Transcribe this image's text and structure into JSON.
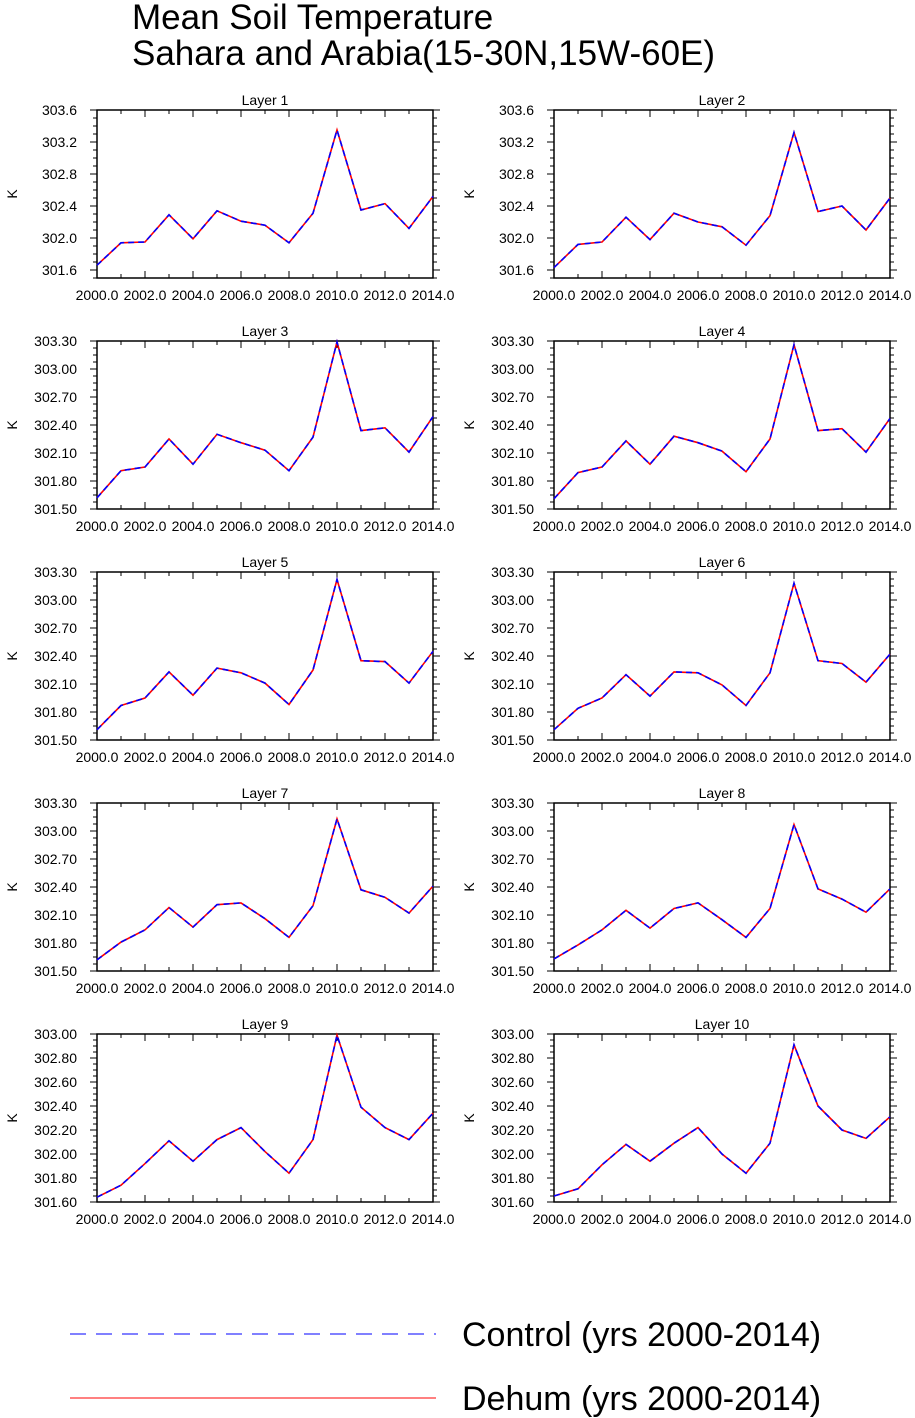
{
  "title": {
    "line1": "Mean Soil Temperature",
    "line2": "Sahara and Arabia(15-30N,15W-60E)"
  },
  "colors": {
    "control": "#0000ff",
    "dehum": "#ff0000"
  },
  "legend": [
    {
      "key": "control",
      "label": "Control (yrs 2000-2014)",
      "style": "dashed"
    },
    {
      "key": "dehum",
      "label": "Dehum (yrs 2000-2014)",
      "style": "solid"
    }
  ],
  "chart_data": [
    {
      "type": "line",
      "title": "Layer 1",
      "ylabel": "K",
      "xlim": [
        2000,
        2014
      ],
      "ylim": [
        301.5,
        303.6
      ],
      "xticks": [
        "2000.0",
        "2002.0",
        "2004.0",
        "2006.0",
        "2008.0",
        "2010.0",
        "2012.0",
        "2014.0"
      ],
      "yticks": [
        "301.6",
        "302.0",
        "302.4",
        "302.8",
        "303.2",
        "303.6"
      ],
      "x": [
        2000,
        2001,
        2002,
        2003,
        2004,
        2005,
        2006,
        2007,
        2008,
        2009,
        2010,
        2011,
        2012,
        2013,
        2014
      ],
      "series": [
        {
          "name": "Control (yrs 2000-2014)",
          "values": [
            301.66,
            301.94,
            301.95,
            302.29,
            301.99,
            302.34,
            302.21,
            302.16,
            301.94,
            302.31,
            303.35,
            302.35,
            302.43,
            302.12,
            302.52
          ]
        },
        {
          "name": "Dehum (yrs 2000-2014)",
          "values": [
            301.66,
            301.94,
            301.95,
            302.29,
            301.99,
            302.34,
            302.21,
            302.16,
            301.94,
            302.31,
            303.35,
            302.35,
            302.43,
            302.12,
            302.52
          ]
        }
      ]
    },
    {
      "type": "line",
      "title": "Layer 2",
      "ylabel": "K",
      "xlim": [
        2000,
        2014
      ],
      "ylim": [
        301.5,
        303.6
      ],
      "xticks": [
        "2000.0",
        "2002.0",
        "2004.0",
        "2006.0",
        "2008.0",
        "2010.0",
        "2012.0",
        "2014.0"
      ],
      "yticks": [
        "301.6",
        "302.0",
        "302.4",
        "302.8",
        "303.2",
        "303.6"
      ],
      "x": [
        2000,
        2001,
        2002,
        2003,
        2004,
        2005,
        2006,
        2007,
        2008,
        2009,
        2010,
        2011,
        2012,
        2013,
        2014
      ],
      "series": [
        {
          "name": "Control (yrs 2000-2014)",
          "values": [
            301.63,
            301.92,
            301.95,
            302.26,
            301.98,
            302.31,
            302.2,
            302.14,
            301.91,
            302.28,
            303.32,
            302.33,
            302.4,
            302.1,
            302.5
          ]
        },
        {
          "name": "Dehum (yrs 2000-2014)",
          "values": [
            301.63,
            301.92,
            301.95,
            302.26,
            301.98,
            302.31,
            302.2,
            302.14,
            301.91,
            302.28,
            303.32,
            302.33,
            302.4,
            302.1,
            302.5
          ]
        }
      ]
    },
    {
      "type": "line",
      "title": "Layer 3",
      "ylabel": "K",
      "xlim": [
        2000,
        2014
      ],
      "ylim": [
        301.5,
        303.3
      ],
      "xticks": [
        "2000.0",
        "2002.0",
        "2004.0",
        "2006.0",
        "2008.0",
        "2010.0",
        "2012.0",
        "2014.0"
      ],
      "yticks": [
        "301.50",
        "301.80",
        "302.10",
        "302.40",
        "302.70",
        "303.00",
        "303.30"
      ],
      "x": [
        2000,
        2001,
        2002,
        2003,
        2004,
        2005,
        2006,
        2007,
        2008,
        2009,
        2010,
        2011,
        2012,
        2013,
        2014
      ],
      "series": [
        {
          "name": "Control (yrs 2000-2014)",
          "values": [
            301.62,
            301.91,
            301.95,
            302.25,
            301.98,
            302.3,
            302.21,
            302.13,
            301.91,
            302.27,
            303.29,
            302.34,
            302.37,
            302.11,
            302.49
          ]
        },
        {
          "name": "Dehum (yrs 2000-2014)",
          "values": [
            301.62,
            301.91,
            301.95,
            302.25,
            301.98,
            302.3,
            302.21,
            302.13,
            301.91,
            302.27,
            303.29,
            302.34,
            302.37,
            302.11,
            302.49
          ]
        }
      ]
    },
    {
      "type": "line",
      "title": "Layer 4",
      "ylabel": "K",
      "xlim": [
        2000,
        2014
      ],
      "ylim": [
        301.5,
        303.3
      ],
      "xticks": [
        "2000.0",
        "2002.0",
        "2004.0",
        "2006.0",
        "2008.0",
        "2010.0",
        "2012.0",
        "2014.0"
      ],
      "yticks": [
        "301.50",
        "301.80",
        "302.10",
        "302.40",
        "302.70",
        "303.00",
        "303.30"
      ],
      "x": [
        2000,
        2001,
        2002,
        2003,
        2004,
        2005,
        2006,
        2007,
        2008,
        2009,
        2010,
        2011,
        2012,
        2013,
        2014
      ],
      "series": [
        {
          "name": "Control (yrs 2000-2014)",
          "values": [
            301.61,
            301.89,
            301.95,
            302.23,
            301.98,
            302.28,
            302.21,
            302.12,
            301.9,
            302.25,
            303.26,
            302.34,
            302.36,
            302.11,
            302.47
          ]
        },
        {
          "name": "Dehum (yrs 2000-2014)",
          "values": [
            301.61,
            301.89,
            301.95,
            302.23,
            301.98,
            302.28,
            302.21,
            302.12,
            301.9,
            302.25,
            303.26,
            302.34,
            302.36,
            302.11,
            302.47
          ]
        }
      ]
    },
    {
      "type": "line",
      "title": "Layer 5",
      "ylabel": "K",
      "xlim": [
        2000,
        2014
      ],
      "ylim": [
        301.5,
        303.3
      ],
      "xticks": [
        "2000.0",
        "2002.0",
        "2004.0",
        "2006.0",
        "2008.0",
        "2010.0",
        "2012.0",
        "2014.0"
      ],
      "yticks": [
        "301.50",
        "301.80",
        "302.10",
        "302.40",
        "302.70",
        "303.00",
        "303.30"
      ],
      "x": [
        2000,
        2001,
        2002,
        2003,
        2004,
        2005,
        2006,
        2007,
        2008,
        2009,
        2010,
        2011,
        2012,
        2013,
        2014
      ],
      "series": [
        {
          "name": "Control (yrs 2000-2014)",
          "values": [
            301.61,
            301.87,
            301.95,
            302.23,
            301.98,
            302.27,
            302.22,
            302.11,
            301.88,
            302.25,
            303.22,
            302.35,
            302.34,
            302.11,
            302.45
          ]
        },
        {
          "name": "Dehum (yrs 2000-2014)",
          "values": [
            301.61,
            301.87,
            301.95,
            302.23,
            301.98,
            302.27,
            302.22,
            302.11,
            301.88,
            302.25,
            303.22,
            302.35,
            302.34,
            302.11,
            302.45
          ]
        }
      ]
    },
    {
      "type": "line",
      "title": "Layer 6",
      "ylabel": "K",
      "xlim": [
        2000,
        2014
      ],
      "ylim": [
        301.5,
        303.3
      ],
      "xticks": [
        "2000.0",
        "2002.0",
        "2004.0",
        "2006.0",
        "2008.0",
        "2010.0",
        "2012.0",
        "2014.0"
      ],
      "yticks": [
        "301.50",
        "301.80",
        "302.10",
        "302.40",
        "302.70",
        "303.00",
        "303.30"
      ],
      "x": [
        2000,
        2001,
        2002,
        2003,
        2004,
        2005,
        2006,
        2007,
        2008,
        2009,
        2010,
        2011,
        2012,
        2013,
        2014
      ],
      "series": [
        {
          "name": "Control (yrs 2000-2014)",
          "values": [
            301.61,
            301.84,
            301.95,
            302.2,
            301.97,
            302.23,
            302.22,
            302.09,
            301.87,
            302.22,
            303.18,
            302.35,
            302.32,
            302.12,
            302.42
          ]
        },
        {
          "name": "Dehum (yrs 2000-2014)",
          "values": [
            301.61,
            301.84,
            301.95,
            302.2,
            301.97,
            302.23,
            302.22,
            302.09,
            301.87,
            302.22,
            303.18,
            302.35,
            302.32,
            302.12,
            302.42
          ]
        }
      ]
    },
    {
      "type": "line",
      "title": "Layer 7",
      "ylabel": "K",
      "xlim": [
        2000,
        2014
      ],
      "ylim": [
        301.5,
        303.3
      ],
      "xticks": [
        "2000.0",
        "2002.0",
        "2004.0",
        "2006.0",
        "2008.0",
        "2010.0",
        "2012.0",
        "2014.0"
      ],
      "yticks": [
        "301.50",
        "301.80",
        "302.10",
        "302.40",
        "302.70",
        "303.00",
        "303.30"
      ],
      "x": [
        2000,
        2001,
        2002,
        2003,
        2004,
        2005,
        2006,
        2007,
        2008,
        2009,
        2010,
        2011,
        2012,
        2013,
        2014
      ],
      "series": [
        {
          "name": "Control (yrs 2000-2014)",
          "values": [
            301.62,
            301.81,
            301.94,
            302.18,
            301.97,
            302.21,
            302.23,
            302.06,
            301.86,
            302.2,
            303.13,
            302.37,
            302.29,
            302.12,
            302.41
          ]
        },
        {
          "name": "Dehum (yrs 2000-2014)",
          "values": [
            301.62,
            301.81,
            301.94,
            302.18,
            301.97,
            302.21,
            302.23,
            302.06,
            301.86,
            302.2,
            303.13,
            302.37,
            302.29,
            302.12,
            302.41
          ]
        }
      ]
    },
    {
      "type": "line",
      "title": "Layer 8",
      "ylabel": "K",
      "xlim": [
        2000,
        2014
      ],
      "ylim": [
        301.5,
        303.3
      ],
      "xticks": [
        "2000.0",
        "2002.0",
        "2004.0",
        "2006.0",
        "2008.0",
        "2010.0",
        "2012.0",
        "2014.0"
      ],
      "yticks": [
        "301.50",
        "301.80",
        "302.10",
        "302.40",
        "302.70",
        "303.00",
        "303.30"
      ],
      "x": [
        2000,
        2001,
        2002,
        2003,
        2004,
        2005,
        2006,
        2007,
        2008,
        2009,
        2010,
        2011,
        2012,
        2013,
        2014
      ],
      "series": [
        {
          "name": "Control (yrs 2000-2014)",
          "values": [
            301.63,
            301.78,
            301.94,
            302.15,
            301.96,
            302.17,
            302.23,
            302.05,
            301.86,
            302.17,
            303.07,
            302.38,
            302.27,
            302.13,
            302.38
          ]
        },
        {
          "name": "Dehum (yrs 2000-2014)",
          "values": [
            301.63,
            301.78,
            301.94,
            302.15,
            301.96,
            302.17,
            302.23,
            302.05,
            301.86,
            302.17,
            303.07,
            302.38,
            302.27,
            302.13,
            302.38
          ]
        }
      ]
    },
    {
      "type": "line",
      "title": "Layer 9",
      "ylabel": "K",
      "xlim": [
        2000,
        2014
      ],
      "ylim": [
        301.6,
        303.0
      ],
      "xticks": [
        "2000.0",
        "2002.0",
        "2004.0",
        "2006.0",
        "2008.0",
        "2010.0",
        "2012.0",
        "2014.0"
      ],
      "yticks": [
        "301.60",
        "301.80",
        "302.00",
        "302.20",
        "302.40",
        "302.60",
        "302.80",
        "303.00"
      ],
      "x": [
        2000,
        2001,
        2002,
        2003,
        2004,
        2005,
        2006,
        2007,
        2008,
        2009,
        2010,
        2011,
        2012,
        2013,
        2014
      ],
      "series": [
        {
          "name": "Control (yrs 2000-2014)",
          "values": [
            301.64,
            301.74,
            301.92,
            302.11,
            301.94,
            302.12,
            302.22,
            302.02,
            301.84,
            302.12,
            302.99,
            302.39,
            302.22,
            302.12,
            302.34
          ]
        },
        {
          "name": "Dehum (yrs 2000-2014)",
          "values": [
            301.64,
            301.74,
            301.92,
            302.11,
            301.94,
            302.12,
            302.22,
            302.02,
            301.84,
            302.12,
            302.99,
            302.39,
            302.22,
            302.12,
            302.34
          ]
        }
      ]
    },
    {
      "type": "line",
      "title": "Layer 10",
      "ylabel": "K",
      "xlim": [
        2000,
        2014
      ],
      "ylim": [
        301.6,
        303.0
      ],
      "xticks": [
        "2000.0",
        "2002.0",
        "2004.0",
        "2006.0",
        "2008.0",
        "2010.0",
        "2012.0",
        "2014.0"
      ],
      "yticks": [
        "301.60",
        "301.80",
        "302.00",
        "302.20",
        "302.40",
        "302.60",
        "302.80",
        "303.00"
      ],
      "x": [
        2000,
        2001,
        2002,
        2003,
        2004,
        2005,
        2006,
        2007,
        2008,
        2009,
        2010,
        2011,
        2012,
        2013,
        2014
      ],
      "series": [
        {
          "name": "Control (yrs 2000-2014)",
          "values": [
            301.65,
            301.71,
            301.91,
            302.08,
            301.94,
            302.09,
            302.22,
            302.0,
            301.84,
            302.09,
            302.91,
            302.4,
            302.2,
            302.13,
            302.31
          ]
        },
        {
          "name": "Dehum (yrs 2000-2014)",
          "values": [
            301.65,
            301.71,
            301.91,
            302.08,
            301.94,
            302.09,
            302.22,
            302.0,
            301.84,
            302.09,
            302.91,
            302.4,
            302.2,
            302.13,
            302.31
          ]
        }
      ]
    }
  ]
}
